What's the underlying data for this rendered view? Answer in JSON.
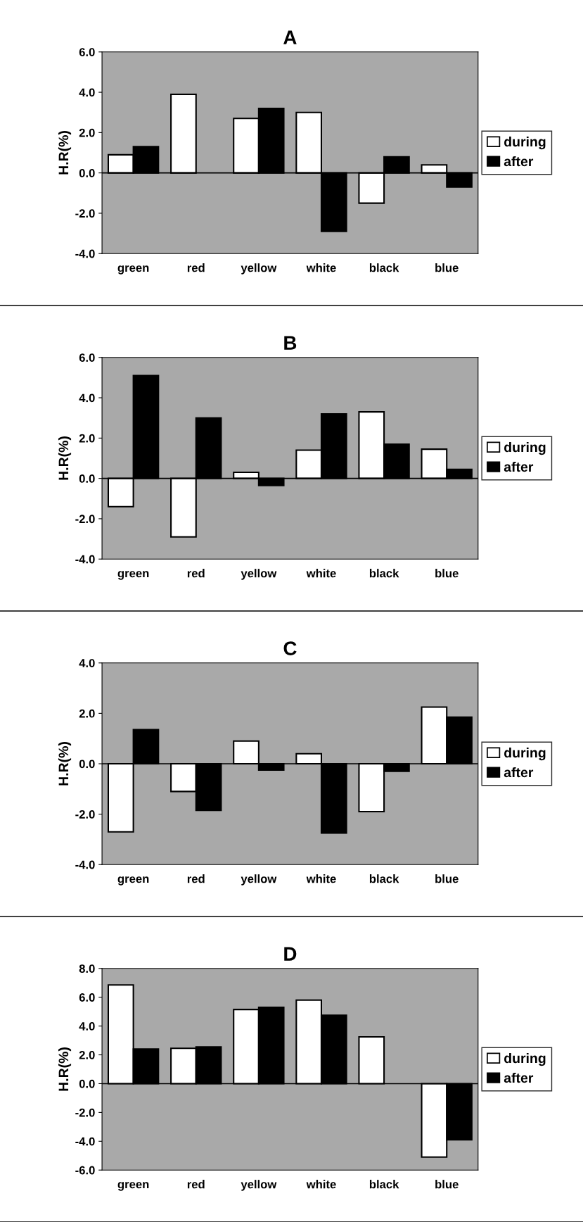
{
  "chart_data": [
    {
      "type": "bar",
      "title": "A",
      "ylabel": "H.R(%)",
      "categories": [
        "green",
        "red",
        "yellow",
        "white",
        "black",
        "blue"
      ],
      "ylim": [
        -4,
        6
      ],
      "yticks": [
        {
          "value": -4,
          "label": "-4.0"
        },
        {
          "value": -2,
          "label": "-2.0"
        },
        {
          "value": 0,
          "label": "0.0"
        },
        {
          "value": 2,
          "label": "2.0"
        },
        {
          "value": 4,
          "label": "4.0"
        },
        {
          "value": 6,
          "label": "6.0"
        }
      ],
      "legend": "right",
      "series": [
        {
          "name": "during",
          "color": "#ffffff",
          "values": [
            0.9,
            3.9,
            2.7,
            3.0,
            -1.5,
            0.4
          ]
        },
        {
          "name": "after",
          "color": "#000000",
          "values": [
            1.3,
            null,
            3.2,
            -2.9,
            0.8,
            -0.7
          ]
        }
      ]
    },
    {
      "type": "bar",
      "title": "B",
      "ylabel": "H.R(%)",
      "categories": [
        "green",
        "red",
        "yellow",
        "white",
        "black",
        "blue"
      ],
      "ylim": [
        -4,
        6
      ],
      "yticks": [
        {
          "value": -4,
          "label": "-4.0"
        },
        {
          "value": -2,
          "label": "-2.0"
        },
        {
          "value": 0,
          "label": "0.0"
        },
        {
          "value": 2,
          "label": "2.0"
        },
        {
          "value": 4,
          "label": "4.0"
        },
        {
          "value": 6,
          "label": "6.0"
        }
      ],
      "legend": "right",
      "series": [
        {
          "name": "during",
          "color": "#ffffff",
          "values": [
            -1.4,
            -2.9,
            0.3,
            1.4,
            3.3,
            1.45
          ]
        },
        {
          "name": "after",
          "color": "#000000",
          "values": [
            5.1,
            3.0,
            -0.35,
            3.2,
            1.7,
            0.45
          ]
        }
      ]
    },
    {
      "type": "bar",
      "title": "C",
      "ylabel": "H.R(%)",
      "categories": [
        "green",
        "red",
        "yellow",
        "white",
        "black",
        "blue"
      ],
      "ylim": [
        -4,
        4
      ],
      "yticks": [
        {
          "value": -4,
          "label": "-4.0"
        },
        {
          "value": -2,
          "label": "-2.0"
        },
        {
          "value": 0,
          "label": "0.0"
        },
        {
          "value": 2,
          "label": "2.0"
        },
        {
          "value": 4,
          "label": "4.0"
        }
      ],
      "legend": "right",
      "series": [
        {
          "name": "during",
          "color": "#ffffff",
          "values": [
            -2.7,
            -1.1,
            0.9,
            0.4,
            -1.9,
            2.25
          ]
        },
        {
          "name": "after",
          "color": "#000000",
          "values": [
            1.35,
            -1.85,
            -0.25,
            -2.75,
            -0.3,
            1.85
          ]
        }
      ]
    },
    {
      "type": "bar",
      "title": "D",
      "ylabel": "H.R(%)",
      "categories": [
        "green",
        "red",
        "yellow",
        "white",
        "black",
        "blue"
      ],
      "ylim": [
        -6,
        8
      ],
      "yticks": [
        {
          "value": -6,
          "label": "-6.0"
        },
        {
          "value": -4,
          "label": "-4.0"
        },
        {
          "value": -2,
          "label": "-2.0"
        },
        {
          "value": 0,
          "label": "0.0"
        },
        {
          "value": 2,
          "label": "2.0"
        },
        {
          "value": 4,
          "label": "4.0"
        },
        {
          "value": 6,
          "label": "6.0"
        },
        {
          "value": 8,
          "label": "8.0"
        }
      ],
      "legend": "right",
      "series": [
        {
          "name": "during",
          "color": "#ffffff",
          "values": [
            6.85,
            2.45,
            5.15,
            5.8,
            3.25,
            -5.1
          ]
        },
        {
          "name": "after",
          "color": "#000000",
          "values": [
            2.4,
            2.55,
            5.3,
            4.75,
            null,
            -3.9
          ]
        }
      ]
    }
  ]
}
